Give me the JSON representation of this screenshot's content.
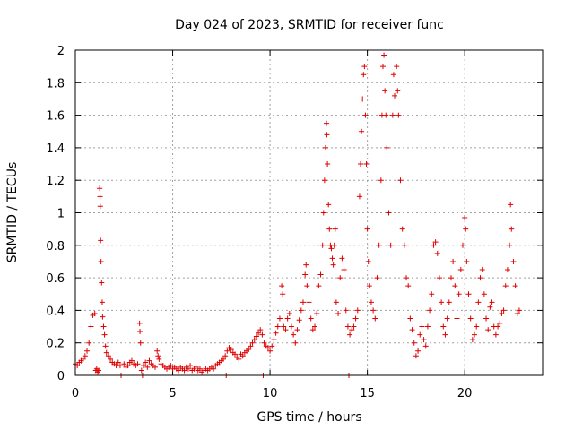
{
  "chart_data": {
    "type": "scatter",
    "title": "Day 024 of 2023, SRMTID for receiver func",
    "xlabel": "GPS time / hours",
    "ylabel": "SRMTID / TECUs",
    "xlim": [
      0,
      24
    ],
    "ylim": [
      0,
      2
    ],
    "xticks": [
      0,
      5,
      10,
      15,
      20
    ],
    "xtick_labels": [
      "0",
      "5",
      "10",
      "15",
      "20"
    ],
    "yticks": [
      0,
      0.2,
      0.4,
      0.6,
      0.8,
      1,
      1.2,
      1.4,
      1.6,
      1.8,
      2
    ],
    "ytick_labels": [
      "0",
      "0.2",
      "0.4",
      "0.6",
      "0.8",
      "1",
      "1.2",
      "1.4",
      "1.6",
      "1.8",
      "2"
    ],
    "grid": true,
    "marker": "+",
    "marker_color": "#e00000",
    "series": [
      {
        "name": "SRMTID",
        "points": [
          [
            0.0,
            0.07
          ],
          [
            0.1,
            0.06
          ],
          [
            0.2,
            0.08
          ],
          [
            0.3,
            0.09
          ],
          [
            0.4,
            0.1
          ],
          [
            0.5,
            0.12
          ],
          [
            0.6,
            0.15
          ],
          [
            0.7,
            0.2
          ],
          [
            0.8,
            0.3
          ],
          [
            0.9,
            0.37
          ],
          [
            1.0,
            0.38
          ],
          [
            1.05,
            0.03
          ],
          [
            1.1,
            0.04
          ],
          [
            1.15,
            0.02
          ],
          [
            1.2,
            0.03
          ],
          [
            1.25,
            1.15
          ],
          [
            1.27,
            1.1
          ],
          [
            1.28,
            1.04
          ],
          [
            1.3,
            0.83
          ],
          [
            1.32,
            0.7
          ],
          [
            1.35,
            0.57
          ],
          [
            1.38,
            0.45
          ],
          [
            1.4,
            0.36
          ],
          [
            1.45,
            0.3
          ],
          [
            1.5,
            0.25
          ],
          [
            1.55,
            0.18
          ],
          [
            1.6,
            0.14
          ],
          [
            1.7,
            0.12
          ],
          [
            1.8,
            0.1
          ],
          [
            1.9,
            0.08
          ],
          [
            2.0,
            0.07
          ],
          [
            2.1,
            0.06
          ],
          [
            2.2,
            0.08
          ],
          [
            2.3,
            0.06
          ],
          [
            2.35,
            0.0
          ],
          [
            2.5,
            0.07
          ],
          [
            2.6,
            0.05
          ],
          [
            2.7,
            0.06
          ],
          [
            2.8,
            0.08
          ],
          [
            2.9,
            0.09
          ],
          [
            3.0,
            0.07
          ],
          [
            3.1,
            0.06
          ],
          [
            3.2,
            0.07
          ],
          [
            3.3,
            0.32
          ],
          [
            3.32,
            0.27
          ],
          [
            3.35,
            0.2
          ],
          [
            3.4,
            0.03
          ],
          [
            3.45,
            0.0
          ],
          [
            3.5,
            0.06
          ],
          [
            3.6,
            0.08
          ],
          [
            3.7,
            0.05
          ],
          [
            3.8,
            0.09
          ],
          [
            3.9,
            0.07
          ],
          [
            4.0,
            0.06
          ],
          [
            4.1,
            0.05
          ],
          [
            4.2,
            0.15
          ],
          [
            4.25,
            0.12
          ],
          [
            4.3,
            0.1
          ],
          [
            4.4,
            0.07
          ],
          [
            4.5,
            0.06
          ],
          [
            4.6,
            0.05
          ],
          [
            4.7,
            0.04
          ],
          [
            4.8,
            0.05
          ],
          [
            4.9,
            0.06
          ],
          [
            5.0,
            0.04
          ],
          [
            5.1,
            0.05
          ],
          [
            5.2,
            0.04
          ],
          [
            5.3,
            0.03
          ],
          [
            5.4,
            0.05
          ],
          [
            5.5,
            0.04
          ],
          [
            5.6,
            0.03
          ],
          [
            5.7,
            0.05
          ],
          [
            5.8,
            0.04
          ],
          [
            5.9,
            0.06
          ],
          [
            6.0,
            0.03
          ],
          [
            6.1,
            0.04
          ],
          [
            6.2,
            0.05
          ],
          [
            6.3,
            0.03
          ],
          [
            6.4,
            0.04
          ],
          [
            6.5,
            0.02
          ],
          [
            6.6,
            0.03
          ],
          [
            6.7,
            0.04
          ],
          [
            6.8,
            0.03
          ],
          [
            6.9,
            0.04
          ],
          [
            7.0,
            0.05
          ],
          [
            7.1,
            0.04
          ],
          [
            7.2,
            0.06
          ],
          [
            7.3,
            0.07
          ],
          [
            7.4,
            0.08
          ],
          [
            7.5,
            0.09
          ],
          [
            7.6,
            0.1
          ],
          [
            7.7,
            0.12
          ],
          [
            7.75,
            0.0
          ],
          [
            7.8,
            0.15
          ],
          [
            7.9,
            0.17
          ],
          [
            8.0,
            0.16
          ],
          [
            8.1,
            0.14
          ],
          [
            8.2,
            0.13
          ],
          [
            8.3,
            0.11
          ],
          [
            8.4,
            0.1
          ],
          [
            8.5,
            0.13
          ],
          [
            8.6,
            0.12
          ],
          [
            8.7,
            0.14
          ],
          [
            8.8,
            0.15
          ],
          [
            8.9,
            0.16
          ],
          [
            9.0,
            0.18
          ],
          [
            9.1,
            0.2
          ],
          [
            9.2,
            0.22
          ],
          [
            9.3,
            0.24
          ],
          [
            9.4,
            0.26
          ],
          [
            9.5,
            0.28
          ],
          [
            9.6,
            0.25
          ],
          [
            9.65,
            0.0
          ],
          [
            9.7,
            0.2
          ],
          [
            9.8,
            0.18
          ],
          [
            9.9,
            0.17
          ],
          [
            10.0,
            0.15
          ],
          [
            10.1,
            0.18
          ],
          [
            10.2,
            0.22
          ],
          [
            10.3,
            0.26
          ],
          [
            10.4,
            0.3
          ],
          [
            10.5,
            0.35
          ],
          [
            10.6,
            0.55
          ],
          [
            10.65,
            0.5
          ],
          [
            10.7,
            0.3
          ],
          [
            10.8,
            0.28
          ],
          [
            10.9,
            0.35
          ],
          [
            11.0,
            0.38
          ],
          [
            11.1,
            0.3
          ],
          [
            11.2,
            0.25
          ],
          [
            11.3,
            0.2
          ],
          [
            11.4,
            0.28
          ],
          [
            11.5,
            0.34
          ],
          [
            11.6,
            0.4
          ],
          [
            11.7,
            0.45
          ],
          [
            11.8,
            0.62
          ],
          [
            11.85,
            0.68
          ],
          [
            11.9,
            0.55
          ],
          [
            12.0,
            0.45
          ],
          [
            12.1,
            0.35
          ],
          [
            12.2,
            0.28
          ],
          [
            12.3,
            0.3
          ],
          [
            12.4,
            0.38
          ],
          [
            12.5,
            0.55
          ],
          [
            12.6,
            0.62
          ],
          [
            12.7,
            0.8
          ],
          [
            12.75,
            1.0
          ],
          [
            12.8,
            1.2
          ],
          [
            12.85,
            1.4
          ],
          [
            12.9,
            1.55
          ],
          [
            12.92,
            1.48
          ],
          [
            12.95,
            1.3
          ],
          [
            13.0,
            1.05
          ],
          [
            13.05,
            0.9
          ],
          [
            13.1,
            0.8
          ],
          [
            13.15,
            0.78
          ],
          [
            13.2,
            0.72
          ],
          [
            13.25,
            0.68
          ],
          [
            13.3,
            0.8
          ],
          [
            13.35,
            0.9
          ],
          [
            13.4,
            0.45
          ],
          [
            13.5,
            0.38
          ],
          [
            13.6,
            0.6
          ],
          [
            13.7,
            0.72
          ],
          [
            13.8,
            0.65
          ],
          [
            13.9,
            0.4
          ],
          [
            14.0,
            0.3
          ],
          [
            14.05,
            0.0
          ],
          [
            14.1,
            0.25
          ],
          [
            14.2,
            0.28
          ],
          [
            14.3,
            0.3
          ],
          [
            14.4,
            0.35
          ],
          [
            14.5,
            0.4
          ],
          [
            14.6,
            1.1
          ],
          [
            14.65,
            1.3
          ],
          [
            14.7,
            1.5
          ],
          [
            14.75,
            1.7
          ],
          [
            14.8,
            1.85
          ],
          [
            14.85,
            1.9
          ],
          [
            14.9,
            1.6
          ],
          [
            14.95,
            1.3
          ],
          [
            15.0,
            0.9
          ],
          [
            15.05,
            0.7
          ],
          [
            15.1,
            0.55
          ],
          [
            15.2,
            0.45
          ],
          [
            15.3,
            0.4
          ],
          [
            15.4,
            0.35
          ],
          [
            15.5,
            0.6
          ],
          [
            15.6,
            0.8
          ],
          [
            15.7,
            1.2
          ],
          [
            15.75,
            1.6
          ],
          [
            15.8,
            1.9
          ],
          [
            15.85,
            1.97
          ],
          [
            15.9,
            1.75
          ],
          [
            15.95,
            1.6
          ],
          [
            16.0,
            1.4
          ],
          [
            16.1,
            1.0
          ],
          [
            16.2,
            0.8
          ],
          [
            16.3,
            1.6
          ],
          [
            16.35,
            1.85
          ],
          [
            16.4,
            1.72
          ],
          [
            16.5,
            1.9
          ],
          [
            16.55,
            1.75
          ],
          [
            16.6,
            1.6
          ],
          [
            16.7,
            1.2
          ],
          [
            16.8,
            0.9
          ],
          [
            16.9,
            0.8
          ],
          [
            17.0,
            0.6
          ],
          [
            17.1,
            0.55
          ],
          [
            17.2,
            0.35
          ],
          [
            17.3,
            0.28
          ],
          [
            17.4,
            0.2
          ],
          [
            17.5,
            0.12
          ],
          [
            17.6,
            0.15
          ],
          [
            17.7,
            0.25
          ],
          [
            17.8,
            0.3
          ],
          [
            17.9,
            0.22
          ],
          [
            18.0,
            0.18
          ],
          [
            18.1,
            0.3
          ],
          [
            18.2,
            0.4
          ],
          [
            18.3,
            0.5
          ],
          [
            18.4,
            0.8
          ],
          [
            18.5,
            0.82
          ],
          [
            18.6,
            0.75
          ],
          [
            18.7,
            0.6
          ],
          [
            18.8,
            0.45
          ],
          [
            18.9,
            0.3
          ],
          [
            19.0,
            0.25
          ],
          [
            19.1,
            0.35
          ],
          [
            19.2,
            0.45
          ],
          [
            19.3,
            0.6
          ],
          [
            19.4,
            0.7
          ],
          [
            19.5,
            0.55
          ],
          [
            19.6,
            0.35
          ],
          [
            19.7,
            0.5
          ],
          [
            19.8,
            0.65
          ],
          [
            19.9,
            0.8
          ],
          [
            20.0,
            0.97
          ],
          [
            20.05,
            0.9
          ],
          [
            20.1,
            0.7
          ],
          [
            20.2,
            0.5
          ],
          [
            20.3,
            0.35
          ],
          [
            20.4,
            0.22
          ],
          [
            20.5,
            0.25
          ],
          [
            20.6,
            0.3
          ],
          [
            20.7,
            0.45
          ],
          [
            20.8,
            0.6
          ],
          [
            20.9,
            0.65
          ],
          [
            21.0,
            0.5
          ],
          [
            21.1,
            0.35
          ],
          [
            21.2,
            0.28
          ],
          [
            21.3,
            0.42
          ],
          [
            21.4,
            0.45
          ],
          [
            21.5,
            0.3
          ],
          [
            21.6,
            0.25
          ],
          [
            21.7,
            0.3
          ],
          [
            21.8,
            0.32
          ],
          [
            21.9,
            0.38
          ],
          [
            22.0,
            0.4
          ],
          [
            22.1,
            0.55
          ],
          [
            22.2,
            0.65
          ],
          [
            22.3,
            0.8
          ],
          [
            22.35,
            1.05
          ],
          [
            22.4,
            0.9
          ],
          [
            22.5,
            0.7
          ],
          [
            22.6,
            0.55
          ],
          [
            22.7,
            0.38
          ],
          [
            22.8,
            0.4
          ]
        ]
      }
    ]
  }
}
